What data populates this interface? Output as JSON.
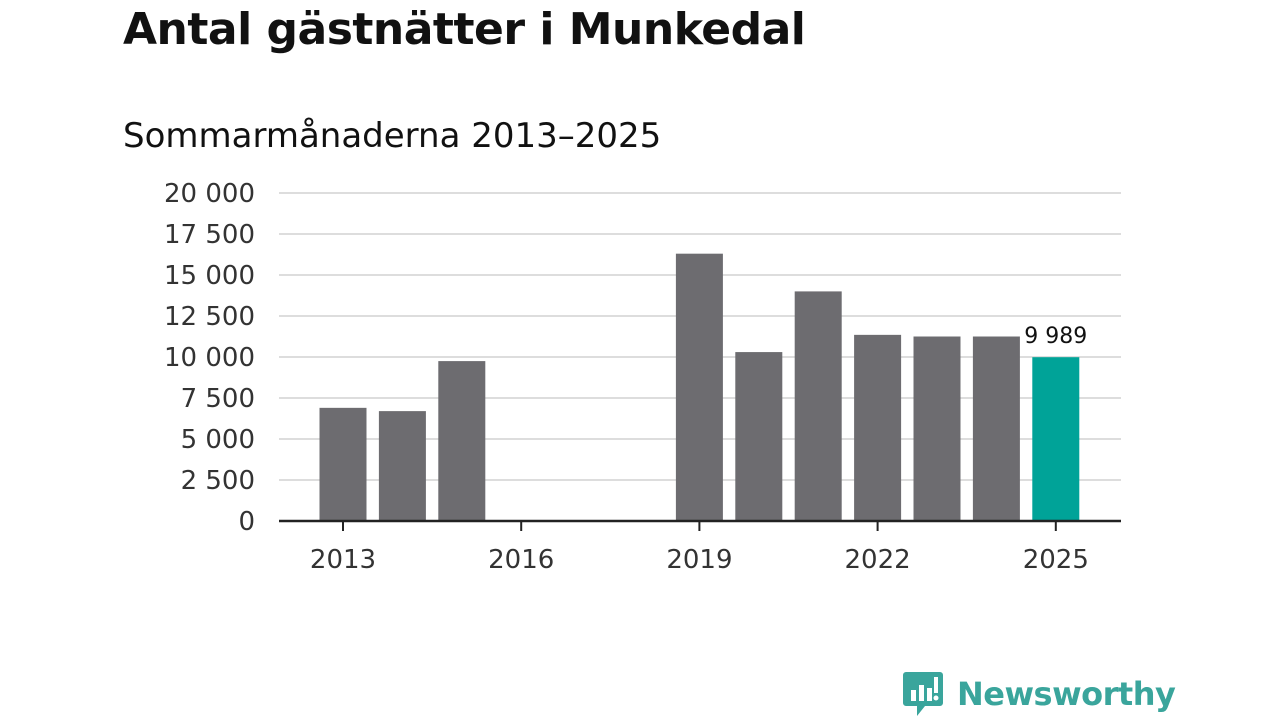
{
  "title": "Antal gästnätter i Munkedal",
  "subtitle": "Sommarmånaderna 2013–2025",
  "brand": {
    "name": "Newsworthy",
    "icon": "newsworthy-logo-icon",
    "color": "#3aa59c"
  },
  "chart_data": {
    "type": "bar",
    "categories": [
      "2013",
      "2014",
      "2015",
      "2016",
      "2017",
      "2018",
      "2019",
      "2020",
      "2021",
      "2022",
      "2023",
      "2024",
      "2025"
    ],
    "values": [
      6900,
      6700,
      9750,
      null,
      null,
      null,
      16300,
      10300,
      14000,
      11350,
      11250,
      11250,
      9989
    ],
    "highlight_index": 12,
    "highlight_label": "9 989",
    "bar_color": "#6d6c70",
    "highlight_color": "#00a398",
    "ylim": [
      0,
      20000
    ],
    "yticks": [
      0,
      2500,
      5000,
      7500,
      10000,
      12500,
      15000,
      17500,
      20000
    ],
    "ytick_labels": [
      "0",
      "2 500",
      "5 000",
      "7 500",
      "10 000",
      "12 500",
      "15 000",
      "17 500",
      "20 000"
    ],
    "xtick_labels": [
      "2013",
      "2016",
      "2019",
      "2022",
      "2025"
    ],
    "grid": true,
    "legend": "none"
  }
}
